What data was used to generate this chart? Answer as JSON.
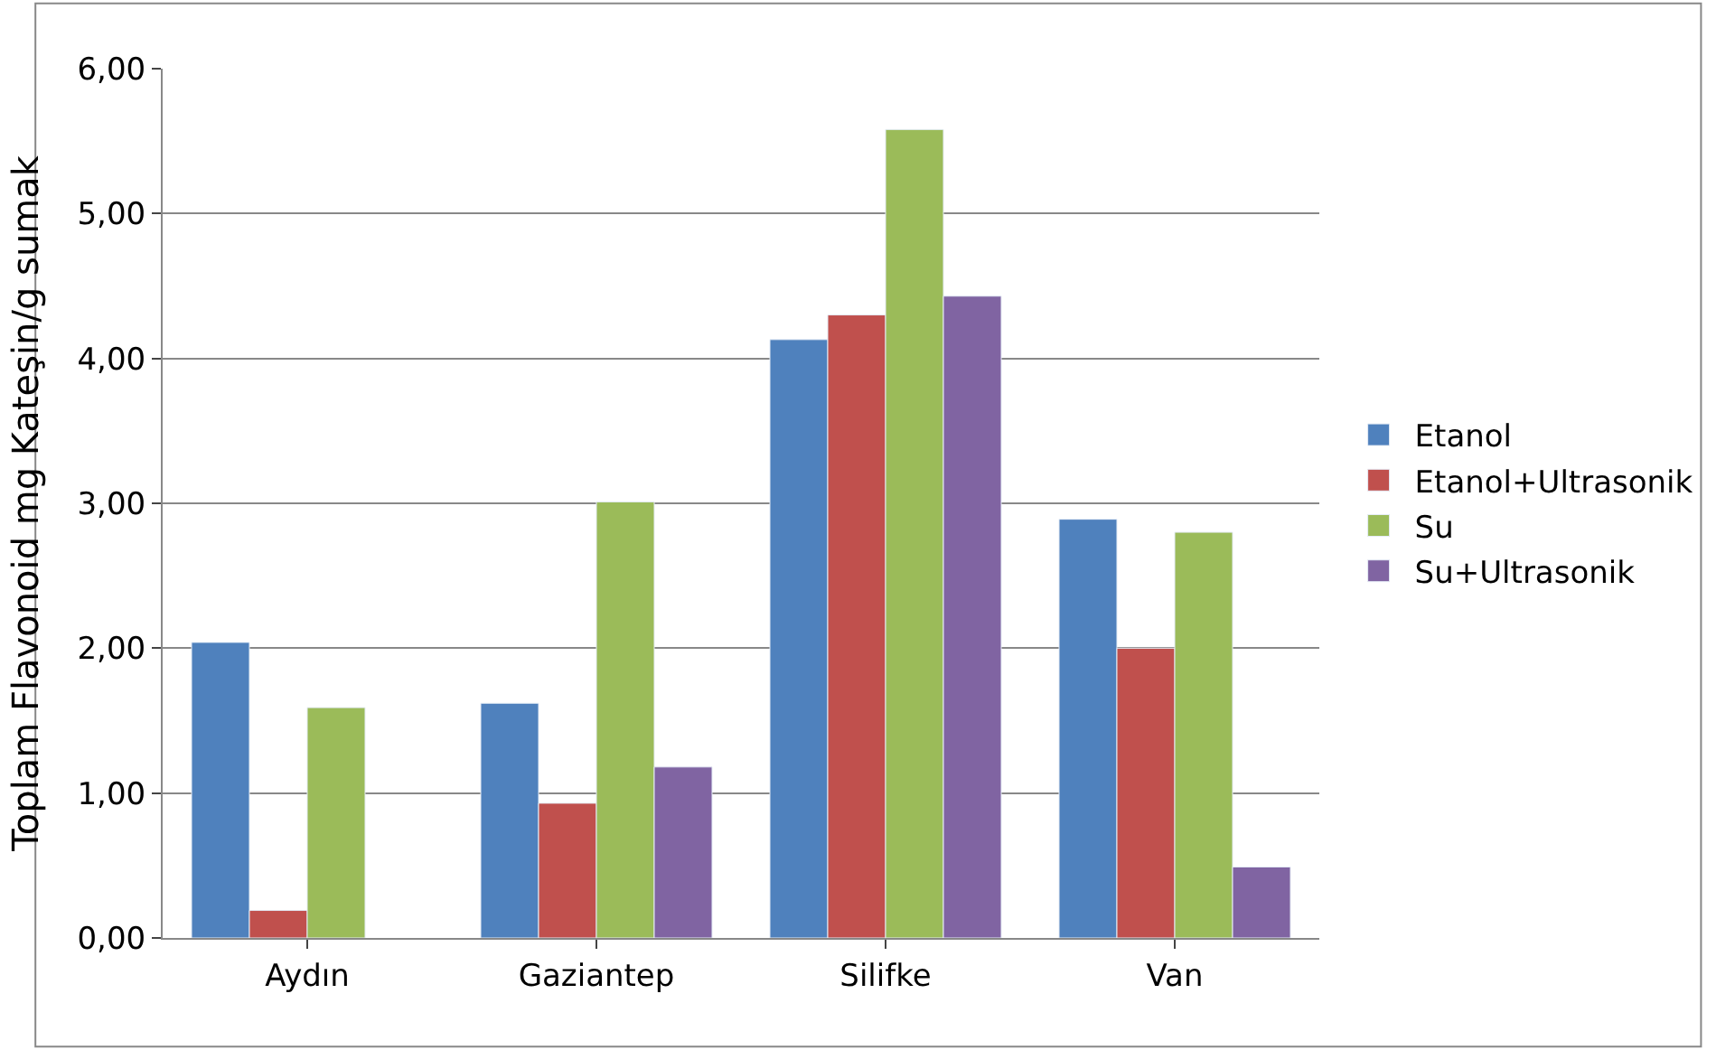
{
  "chart_data": {
    "type": "bar",
    "ylabel": "Toplam Flavonoid mg Kateşin/g sumak",
    "categories": [
      "Aydın",
      "Gaziantep",
      "Silifke",
      "Van"
    ],
    "series": [
      {
        "name": "Etanol",
        "color": "#4f81bd",
        "values": [
          2.04,
          1.62,
          4.13,
          2.89
        ]
      },
      {
        "name": "Etanol+Ultrasonik",
        "color": "#c0504d",
        "values": [
          0.19,
          0.93,
          4.3,
          2.0
        ]
      },
      {
        "name": "Su",
        "color": "#9bbb59",
        "values": [
          1.59,
          3.01,
          5.58,
          2.8
        ]
      },
      {
        "name": "Su+Ultrasonik",
        "color": "#8064a2",
        "values": [
          null,
          1.18,
          4.43,
          0.49
        ]
      }
    ],
    "ylim": [
      0,
      6
    ],
    "yticks": [
      {
        "value": 0,
        "label": "0,00"
      },
      {
        "value": 1,
        "label": "1,00"
      },
      {
        "value": 2,
        "label": "2,00"
      },
      {
        "value": 3,
        "label": "3,00"
      },
      {
        "value": 4,
        "label": "4,00"
      },
      {
        "value": 5,
        "label": "5,00"
      },
      {
        "value": 6,
        "label": "6,00"
      }
    ],
    "grid": "y",
    "legend": "right"
  }
}
